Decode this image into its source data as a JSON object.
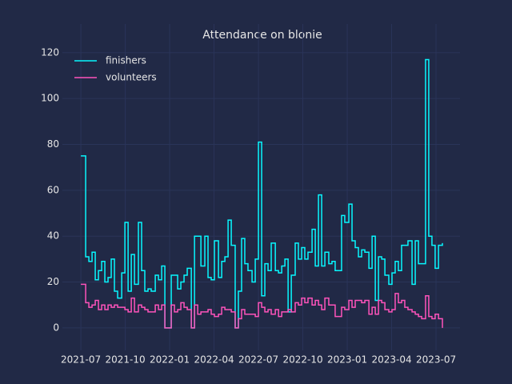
{
  "chart_data": {
    "type": "step",
    "title": "Attendance on blonie",
    "x": [
      2021.5,
      2021.527,
      2021.545,
      2021.563,
      2021.581,
      2021.599,
      2021.617,
      2021.635,
      2021.653,
      2021.671,
      2021.689,
      2021.707,
      2021.73,
      2021.748,
      2021.766,
      2021.784,
      2021.802,
      2021.824,
      2021.842,
      2021.86,
      2021.878,
      2021.896,
      2021.919,
      2021.937,
      2021.955,
      2021.973,
      2022.009,
      2022.027,
      2022.045,
      2022.063,
      2022.081,
      2022.099,
      2022.122,
      2022.14,
      2022.158,
      2022.176,
      2022.198,
      2022.216,
      2022.234,
      2022.252,
      2022.275,
      2022.293,
      2022.311,
      2022.329,
      2022.347,
      2022.369,
      2022.387,
      2022.405,
      2022.423,
      2022.441,
      2022.464,
      2022.482,
      2022.5,
      2022.518,
      2022.536,
      2022.554,
      2022.572,
      2022.595,
      2022.613,
      2022.631,
      2022.649,
      2022.667,
      2022.685,
      2022.707,
      2022.725,
      2022.743,
      2022.761,
      2022.779,
      2022.802,
      2022.82,
      2022.838,
      2022.856,
      2022.874,
      2022.896,
      2022.914,
      2022.932,
      2022.968,
      2022.986,
      2023.009,
      2023.027,
      2023.045,
      2023.063,
      2023.081,
      2023.099,
      2023.122,
      2023.14,
      2023.158,
      2023.176,
      2023.194,
      2023.212,
      2023.234,
      2023.252,
      2023.27,
      2023.288,
      2023.306,
      2023.324,
      2023.342,
      2023.365,
      2023.383,
      2023.401,
      2023.419,
      2023.441,
      2023.459,
      2023.477,
      2023.495,
      2023.514,
      2023.536
    ],
    "series": [
      {
        "name": "finishers",
        "color": "#08F7FE",
        "values": [
          75,
          31,
          29,
          33,
          21,
          25,
          29,
          20,
          22,
          30,
          16,
          13,
          24,
          46,
          16,
          32,
          19,
          46,
          25,
          16,
          17,
          16,
          23,
          21,
          27,
          0,
          23,
          23,
          17,
          20,
          23,
          26,
          0,
          40,
          40,
          27,
          40,
          22,
          21,
          38,
          22,
          29,
          31,
          47,
          36,
          0,
          16,
          39,
          28,
          25,
          20,
          30,
          81,
          14,
          28,
          25,
          37,
          25,
          24,
          27,
          30,
          7,
          23,
          37,
          30,
          35,
          30,
          33,
          43,
          27,
          58,
          27,
          33,
          28,
          29,
          25,
          49,
          46,
          54,
          38,
          35,
          31,
          34,
          33,
          26,
          40,
          12,
          31,
          30,
          23,
          19,
          24,
          29,
          25,
          36,
          36,
          38,
          19,
          38,
          28,
          28,
          117,
          40,
          36,
          26,
          36,
          37
        ]
      },
      {
        "name": "volunteers",
        "color": "#FE53BB",
        "values": [
          19,
          11,
          9,
          10,
          12,
          8,
          10,
          8,
          10,
          9,
          10,
          9,
          9,
          8,
          7,
          13,
          7,
          10,
          9,
          8,
          7,
          7,
          10,
          8,
          10,
          0,
          10,
          7,
          8,
          11,
          9,
          8,
          0,
          10,
          6,
          7,
          7,
          8,
          6,
          5,
          6,
          9,
          8,
          8,
          7,
          0,
          4,
          8,
          6,
          6,
          6,
          5,
          11,
          9,
          7,
          8,
          6,
          8,
          5,
          7,
          7,
          8,
          7,
          11,
          10,
          13,
          11,
          13,
          10,
          12,
          10,
          8,
          13,
          10,
          10,
          5,
          9,
          8,
          12,
          9,
          12,
          12,
          11,
          12,
          6,
          9,
          6,
          12,
          11,
          8,
          7,
          8,
          15,
          11,
          12,
          9,
          8,
          7,
          6,
          5,
          4,
          14,
          5,
          4,
          6,
          4,
          0
        ]
      }
    ],
    "xlim": [
      2021.396,
      2023.635
    ],
    "xticks": [
      {
        "value": 2021.5,
        "label": "2021-07"
      },
      {
        "value": 2021.75,
        "label": "2021-10"
      },
      {
        "value": 2022.0,
        "label": "2022-01"
      },
      {
        "value": 2022.25,
        "label": "2022-04"
      },
      {
        "value": 2022.5,
        "label": "2022-07"
      },
      {
        "value": 2022.75,
        "label": "2022-10"
      },
      {
        "value": 2023.0,
        "label": "2023-01"
      },
      {
        "value": 2023.25,
        "label": "2023-04"
      },
      {
        "value": 2023.5,
        "label": "2023-07"
      }
    ],
    "ylim": [
      -9.8,
      132.5
    ],
    "yticks": [
      0,
      20,
      40,
      60,
      80,
      100,
      120
    ],
    "grid": true,
    "legend": "upper left"
  }
}
